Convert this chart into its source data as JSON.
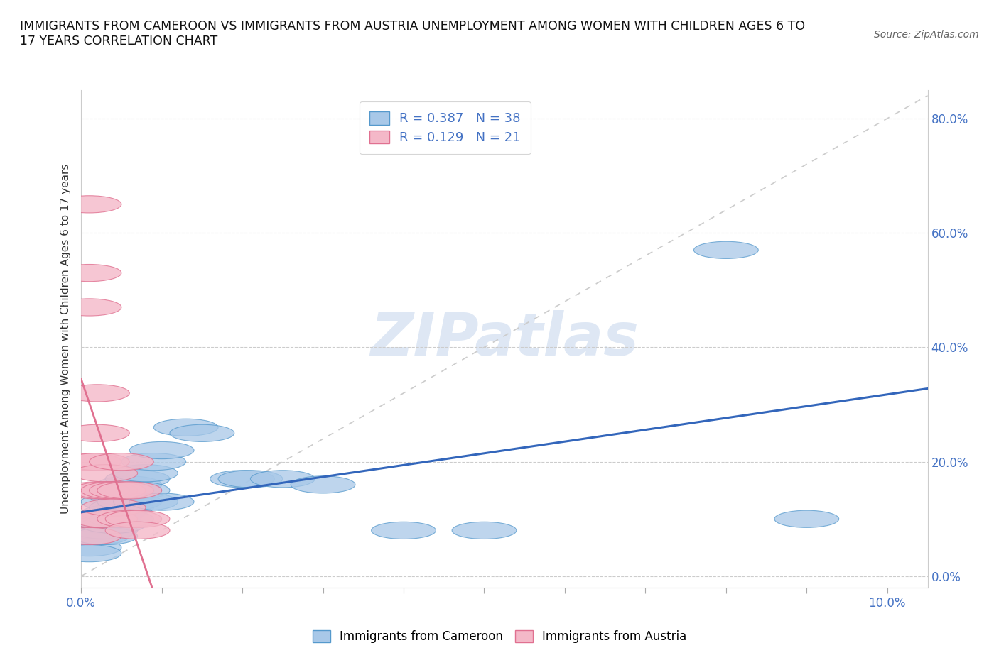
{
  "title": "IMMIGRANTS FROM CAMEROON VS IMMIGRANTS FROM AUSTRIA UNEMPLOYMENT AMONG WOMEN WITH CHILDREN AGES 6 TO\n17 YEARS CORRELATION CHART",
  "source": "Source: ZipAtlas.com",
  "ylabel": "Unemployment Among Women with Children Ages 6 to 17 years",
  "xlim": [
    0.0,
    0.105
  ],
  "ylim": [
    -0.02,
    0.85
  ],
  "xticks": [
    0.0,
    0.01,
    0.02,
    0.03,
    0.04,
    0.05,
    0.06,
    0.07,
    0.08,
    0.09,
    0.1
  ],
  "yticks": [
    0.0,
    0.2,
    0.4,
    0.6,
    0.8
  ],
  "yticklabels": [
    "0.0%",
    "20.0%",
    "40.0%",
    "60.0%",
    "80.0%"
  ],
  "cameroon_color": "#a8c8e8",
  "cameroon_edge": "#5599cc",
  "austria_color": "#f4b8c8",
  "austria_edge": "#e07090",
  "trend_cameroon": "#3366bb",
  "trend_austria": "#e07090",
  "diag_color": "#cccccc",
  "R_cameroon": 0.387,
  "N_cameroon": 38,
  "R_austria": 0.129,
  "N_austria": 21,
  "legend_color_cam": "#4472c4",
  "legend_color_aut": "#e07090",
  "tick_color": "#4472c4",
  "watermark_color": "#c8d8ee",
  "cameroon_x": [
    0.001,
    0.001,
    0.001,
    0.002,
    0.002,
    0.002,
    0.002,
    0.003,
    0.003,
    0.003,
    0.003,
    0.004,
    0.004,
    0.004,
    0.005,
    0.005,
    0.005,
    0.005,
    0.006,
    0.006,
    0.006,
    0.007,
    0.007,
    0.008,
    0.008,
    0.009,
    0.01,
    0.01,
    0.013,
    0.015,
    0.02,
    0.021,
    0.025,
    0.03,
    0.04,
    0.05,
    0.08,
    0.09
  ],
  "cameroon_y": [
    0.07,
    0.05,
    0.04,
    0.1,
    0.09,
    0.08,
    0.07,
    0.1,
    0.09,
    0.08,
    0.07,
    0.13,
    0.11,
    0.09,
    0.15,
    0.14,
    0.12,
    0.1,
    0.16,
    0.15,
    0.13,
    0.17,
    0.15,
    0.18,
    0.13,
    0.2,
    0.22,
    0.13,
    0.26,
    0.25,
    0.17,
    0.17,
    0.17,
    0.16,
    0.08,
    0.08,
    0.57,
    0.1
  ],
  "austria_x": [
    0.001,
    0.001,
    0.001,
    0.001,
    0.001,
    0.002,
    0.002,
    0.002,
    0.002,
    0.002,
    0.003,
    0.003,
    0.003,
    0.004,
    0.004,
    0.005,
    0.005,
    0.006,
    0.006,
    0.007,
    0.007
  ],
  "austria_y": [
    0.65,
    0.53,
    0.47,
    0.2,
    0.07,
    0.32,
    0.25,
    0.2,
    0.15,
    0.1,
    0.18,
    0.15,
    0.1,
    0.15,
    0.12,
    0.2,
    0.15,
    0.15,
    0.1,
    0.1,
    0.08
  ]
}
